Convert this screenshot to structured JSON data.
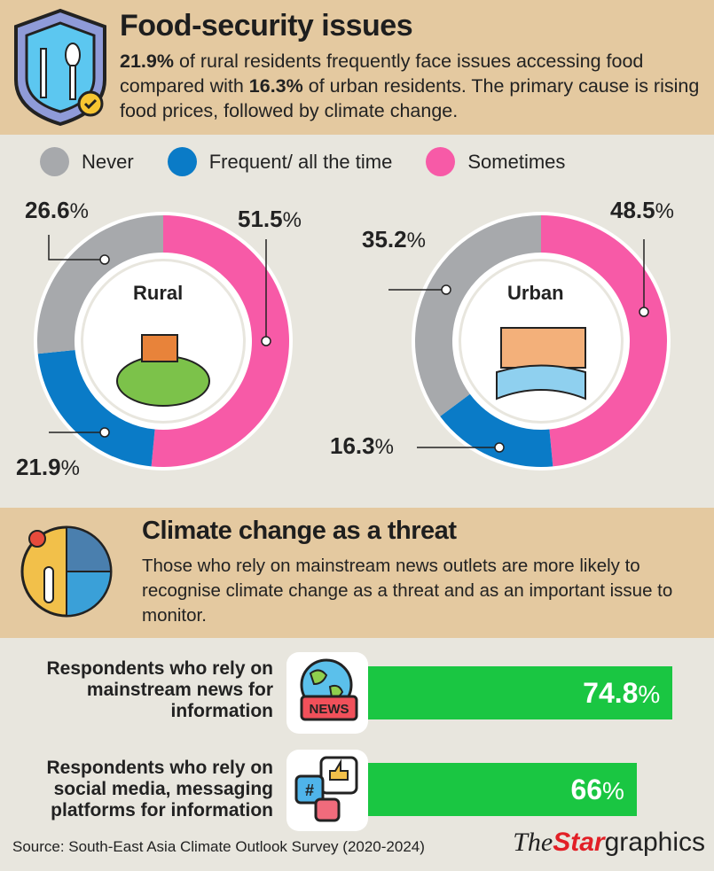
{
  "header": {
    "title": "Food-security issues",
    "desc_parts": [
      "21.9%",
      " of rural residents frequently face issues accessing food compared with ",
      "16.3%",
      " of urban residents. The primary cause is rising food prices, followed by climate change."
    ]
  },
  "legend": [
    {
      "label": "Never",
      "color": "#a7a9ac"
    },
    {
      "label": "Frequent/ all the time",
      "color": "#0a7bc7"
    },
    {
      "label": "Sometimes",
      "color": "#f75aa7"
    }
  ],
  "chart_data": [
    {
      "type": "pie",
      "title": "Rural",
      "categories": [
        "Sometimes",
        "Frequent/ all the time",
        "Never"
      ],
      "values": [
        51.5,
        21.9,
        26.6
      ],
      "labels": [
        "51.5",
        "21.9",
        "26.6"
      ]
    },
    {
      "type": "pie",
      "title": "Urban",
      "categories": [
        "Sometimes",
        "Frequent/ all the time",
        "Never"
      ],
      "values": [
        48.5,
        16.3,
        35.2
      ],
      "labels": [
        "48.5",
        "16.3",
        "35.2"
      ]
    },
    {
      "type": "bar",
      "title": "Climate change as a threat",
      "categories": [
        "Respondents who rely on mainstream news for information",
        "Respondents who rely on social media, messaging platforms for information"
      ],
      "values": [
        74.8,
        66
      ],
      "labels": [
        "74.8",
        "66"
      ],
      "unit": "%"
    }
  ],
  "section2": {
    "title": "Climate change as a threat",
    "desc": "Those who rely on mainstream news outlets are more likely to recognise climate change as a threat and as an important issue to monitor."
  },
  "news_icon_text": "NEWS",
  "pct_sign": "%",
  "source": "Source: South-East Asia Climate Outlook Survey (2020-2024)",
  "logo": {
    "the": "The",
    "star": "Star",
    "graphics": "graphics"
  }
}
